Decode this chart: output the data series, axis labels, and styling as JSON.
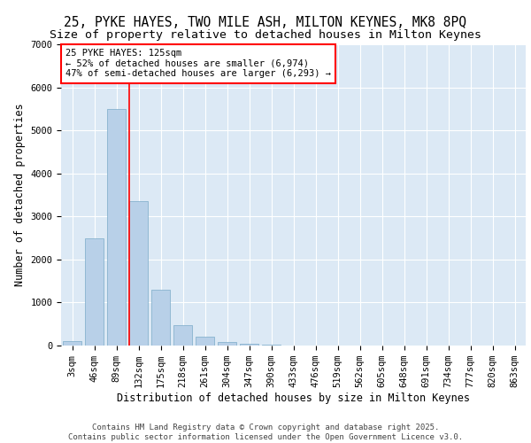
{
  "title_line1": "25, PYKE HAYES, TWO MILE ASH, MILTON KEYNES, MK8 8PQ",
  "title_line2": "Size of property relative to detached houses in Milton Keynes",
  "xlabel": "Distribution of detached houses by size in Milton Keynes",
  "ylabel": "Number of detached properties",
  "categories": [
    "3sqm",
    "46sqm",
    "89sqm",
    "132sqm",
    "175sqm",
    "218sqm",
    "261sqm",
    "304sqm",
    "347sqm",
    "390sqm",
    "433sqm",
    "476sqm",
    "519sqm",
    "562sqm",
    "605sqm",
    "648sqm",
    "691sqm",
    "734sqm",
    "777sqm",
    "820sqm",
    "863sqm"
  ],
  "values": [
    100,
    2500,
    5500,
    3350,
    1300,
    480,
    210,
    90,
    45,
    20,
    0,
    0,
    0,
    0,
    0,
    0,
    0,
    0,
    0,
    0,
    0
  ],
  "bar_color": "#b8d0e8",
  "bar_edge_color": "#7aaac8",
  "vline_color": "red",
  "annotation_text": "25 PYKE HAYES: 125sqm\n← 52% of detached houses are smaller (6,974)\n47% of semi-detached houses are larger (6,293) →",
  "annotation_box_facecolor": "#ffffff",
  "annotation_box_edgecolor": "red",
  "ylim": [
    0,
    7000
  ],
  "yticks": [
    0,
    1000,
    2000,
    3000,
    4000,
    5000,
    6000,
    7000
  ],
  "background_color": "#dce9f5",
  "plot_bg_color": "#dce9f5",
  "fig_bg_color": "#ffffff",
  "grid_color": "#ffffff",
  "footer_line1": "Contains HM Land Registry data © Crown copyright and database right 2025.",
  "footer_line2": "Contains public sector information licensed under the Open Government Licence v3.0.",
  "title_fontsize": 10.5,
  "subtitle_fontsize": 9.5,
  "axis_label_fontsize": 8.5,
  "tick_fontsize": 7.5,
  "annotation_fontsize": 7.5,
  "footer_fontsize": 6.5
}
